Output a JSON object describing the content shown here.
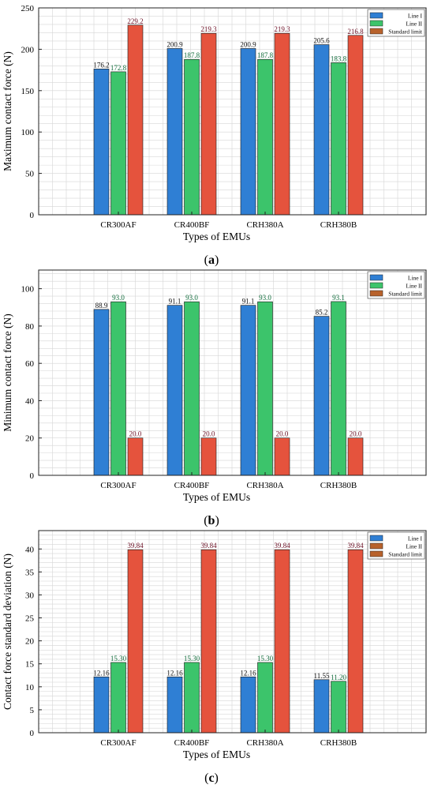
{
  "charts": [
    {
      "id": "a",
      "type": "bar",
      "categories": [
        "CR300AF",
        "CR400BF",
        "CRH380A",
        "CRH380B"
      ],
      "series": [
        {
          "name": "Line I",
          "values": [
            176.2,
            200.9,
            200.9,
            205.6
          ]
        },
        {
          "name": "Line II",
          "values": [
            172.8,
            187.8,
            187.8,
            183.8
          ]
        },
        {
          "name": "Standard limit",
          "values": [
            229.2,
            219.3,
            219.3,
            216.8
          ]
        }
      ],
      "value_labels": [
        [
          "176.2",
          "200.9",
          "200.9",
          "205.6"
        ],
        [
          "172.8",
          "187.8",
          "187.8",
          "183.8"
        ],
        [
          "229.2",
          "219.3",
          "219.3",
          "216.8"
        ]
      ],
      "legend_swatch_colors": [
        "#2f7fd4",
        "#3cc46b",
        "#b8622c"
      ],
      "xlabel": "Types of EMUs",
      "ylabel": "Maximum contact force (N)",
      "ylim": [
        0,
        250
      ],
      "yticks": [
        0,
        50,
        100,
        150,
        200,
        250
      ],
      "ytick_labels": [
        "0",
        "50",
        "100",
        "150",
        "200",
        "250"
      ],
      "caption_letter": "a",
      "grid": true,
      "legend_position": "top-right"
    },
    {
      "id": "b",
      "type": "bar",
      "categories": [
        "CR300AF",
        "CR400BF",
        "CRH380A",
        "CRH380B"
      ],
      "series": [
        {
          "name": "Line I",
          "values": [
            88.9,
            91.1,
            91.1,
            85.2
          ]
        },
        {
          "name": "Line II",
          "values": [
            93.0,
            93.0,
            93.0,
            93.1
          ]
        },
        {
          "name": "Standard limit",
          "values": [
            20.0,
            20.0,
            20.0,
            20.0
          ]
        }
      ],
      "value_labels": [
        [
          "88.9",
          "91.1",
          "91.1",
          "85.2"
        ],
        [
          "93.0",
          "93.0",
          "93.0",
          "93.1"
        ],
        [
          "20.0",
          "20.0",
          "20.0",
          "20.0"
        ]
      ],
      "legend_swatch_colors": [
        "#2f7fd4",
        "#3cc46b",
        "#b8622c"
      ],
      "xlabel": "Types of EMUs",
      "ylabel": "Minimum contact force (N)",
      "ylim": [
        0,
        110
      ],
      "yticks": [
        0,
        20,
        40,
        60,
        80,
        100
      ],
      "ytick_labels": [
        "0",
        "20",
        "40",
        "60",
        "80",
        "100"
      ],
      "caption_letter": "b",
      "grid": true,
      "legend_position": "top-right"
    },
    {
      "id": "c",
      "type": "bar",
      "categories": [
        "CR300AF",
        "CR400BF",
        "CRH380A",
        "CRH380B"
      ],
      "series": [
        {
          "name": "Line I",
          "values": [
            12.16,
            12.16,
            12.16,
            11.55
          ]
        },
        {
          "name": "Line II",
          "values": [
            15.3,
            15.3,
            15.3,
            11.2
          ]
        },
        {
          "name": "Standard limit",
          "values": [
            39.84,
            39.84,
            39.84,
            39.84
          ]
        }
      ],
      "value_labels": [
        [
          "12.16",
          "12.16",
          "12.16",
          "11.55"
        ],
        [
          "15.30",
          "15.30",
          "15.30",
          "11.20"
        ],
        [
          "39.84",
          "39.84",
          "39.84",
          "39.84"
        ]
      ],
      "legend_swatch_colors": [
        "#2f7fd4",
        "#b8622c",
        "#b8622c"
      ],
      "xlabel": "Types of EMUs",
      "ylabel": "Contact force standard deviation (N)",
      "ylim": [
        0,
        44
      ],
      "yticks": [
        0,
        5,
        10,
        15,
        20,
        25,
        30,
        35,
        40
      ],
      "ytick_labels": [
        "0",
        "5",
        "10",
        "15",
        "20",
        "25",
        "30",
        "35",
        "40"
      ],
      "caption_letter": "c",
      "grid": true,
      "legend_position": "top-right"
    }
  ],
  "colors": {
    "line1": "#2f7fd4",
    "line2": "#3cc46b",
    "standard": "#e5533d",
    "label_line1": "#111111",
    "label_line2": "#0f6b3a",
    "label_standard": "#6b0f24",
    "grid": "#d6d6d6",
    "axis": "#222222"
  }
}
